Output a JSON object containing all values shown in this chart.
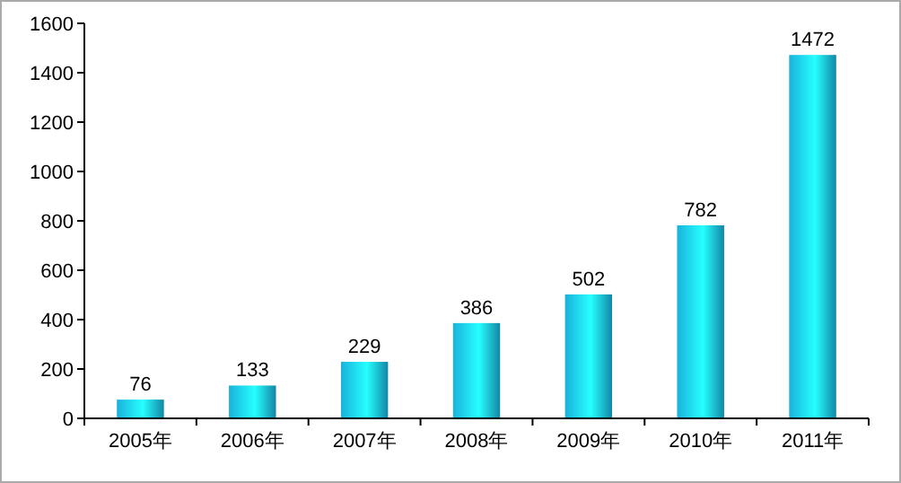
{
  "chart_data": {
    "type": "bar",
    "categories": [
      "2005年",
      "2006年",
      "2007年",
      "2008年",
      "2009年",
      "2010年",
      "2011年"
    ],
    "values": [
      76,
      133,
      229,
      386,
      502,
      782,
      1472
    ],
    "color": "#19b2dc",
    "ylim": [
      0,
      1600
    ],
    "yticks": [
      0,
      200,
      400,
      600,
      800,
      1000,
      1200,
      1400,
      1600
    ],
    "data_labels": true
  }
}
